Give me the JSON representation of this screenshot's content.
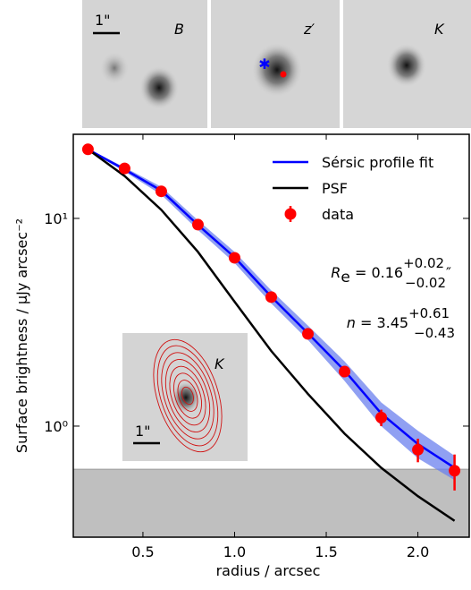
{
  "chart_data": {
    "type": "line",
    "images": [
      {
        "label": "B"
      },
      {
        "label": "z′"
      },
      {
        "label": "K"
      }
    ],
    "scale_label": "1\"",
    "inset": {
      "label": "K",
      "scale_label": "1\""
    },
    "xlabel": "radius / arcsec",
    "ylabel": "Surface brightness / μJy arcsec⁻²",
    "xlim": [
      0.12,
      2.28
    ],
    "ylim": [
      0.292,
      25.4
    ],
    "yscale": "log",
    "xticks": [
      0.5,
      {
        "value": 1,
        "label": "1.0"
      },
      1.5,
      {
        "value": 2,
        "label": "2.0"
      }
    ],
    "yticks": [
      {
        "value": 1,
        "label": "10⁰"
      },
      {
        "value": 10,
        "label": "10¹"
      }
    ],
    "background_level": 0.62,
    "x": [
      0.2,
      0.4,
      0.6,
      0.8,
      1.0,
      1.2,
      1.4,
      1.6,
      1.8,
      2.0,
      2.2
    ],
    "series": [
      {
        "name": "Sérsic profile fit",
        "color": "#0000ff",
        "band_color": "#6b80ee",
        "values": [
          21.5,
          17.2,
          13.6,
          9.3,
          6.5,
          4.2,
          2.8,
          1.85,
          1.15,
          0.82,
          0.63
        ],
        "lower": [
          21.3,
          16.8,
          13.0,
          8.8,
          6.1,
          3.9,
          2.6,
          1.65,
          1.0,
          0.7,
          0.55
        ],
        "upper": [
          21.7,
          17.6,
          14.2,
          9.8,
          6.9,
          4.5,
          3.05,
          2.05,
          1.3,
          0.95,
          0.72
        ]
      },
      {
        "name": "PSF",
        "color": "#000000",
        "values": [
          21.5,
          16.0,
          11.0,
          6.9,
          3.97,
          2.3,
          1.43,
          0.92,
          0.63,
          0.46,
          0.35
        ]
      },
      {
        "name": "data",
        "color": "#ff0000",
        "values": [
          21.5,
          17.4,
          13.5,
          9.33,
          6.46,
          4.18,
          2.78,
          1.83,
          1.1,
          0.77,
          0.61
        ],
        "errors": [
          0.3,
          0.3,
          0.3,
          0.2,
          0.15,
          0.1,
          0.06,
          0.05,
          0.1,
          0.1,
          0.12
        ]
      }
    ],
    "annotations": [
      {
        "symbol": "R",
        "sub": "e",
        "text": " = 0.16",
        "plus": "+0.02",
        "minus": "−0.02",
        "unit": "″"
      },
      {
        "symbol": "n",
        "text": " = 3.45",
        "plus": "+0.61",
        "minus": "−0.43"
      }
    ]
  }
}
